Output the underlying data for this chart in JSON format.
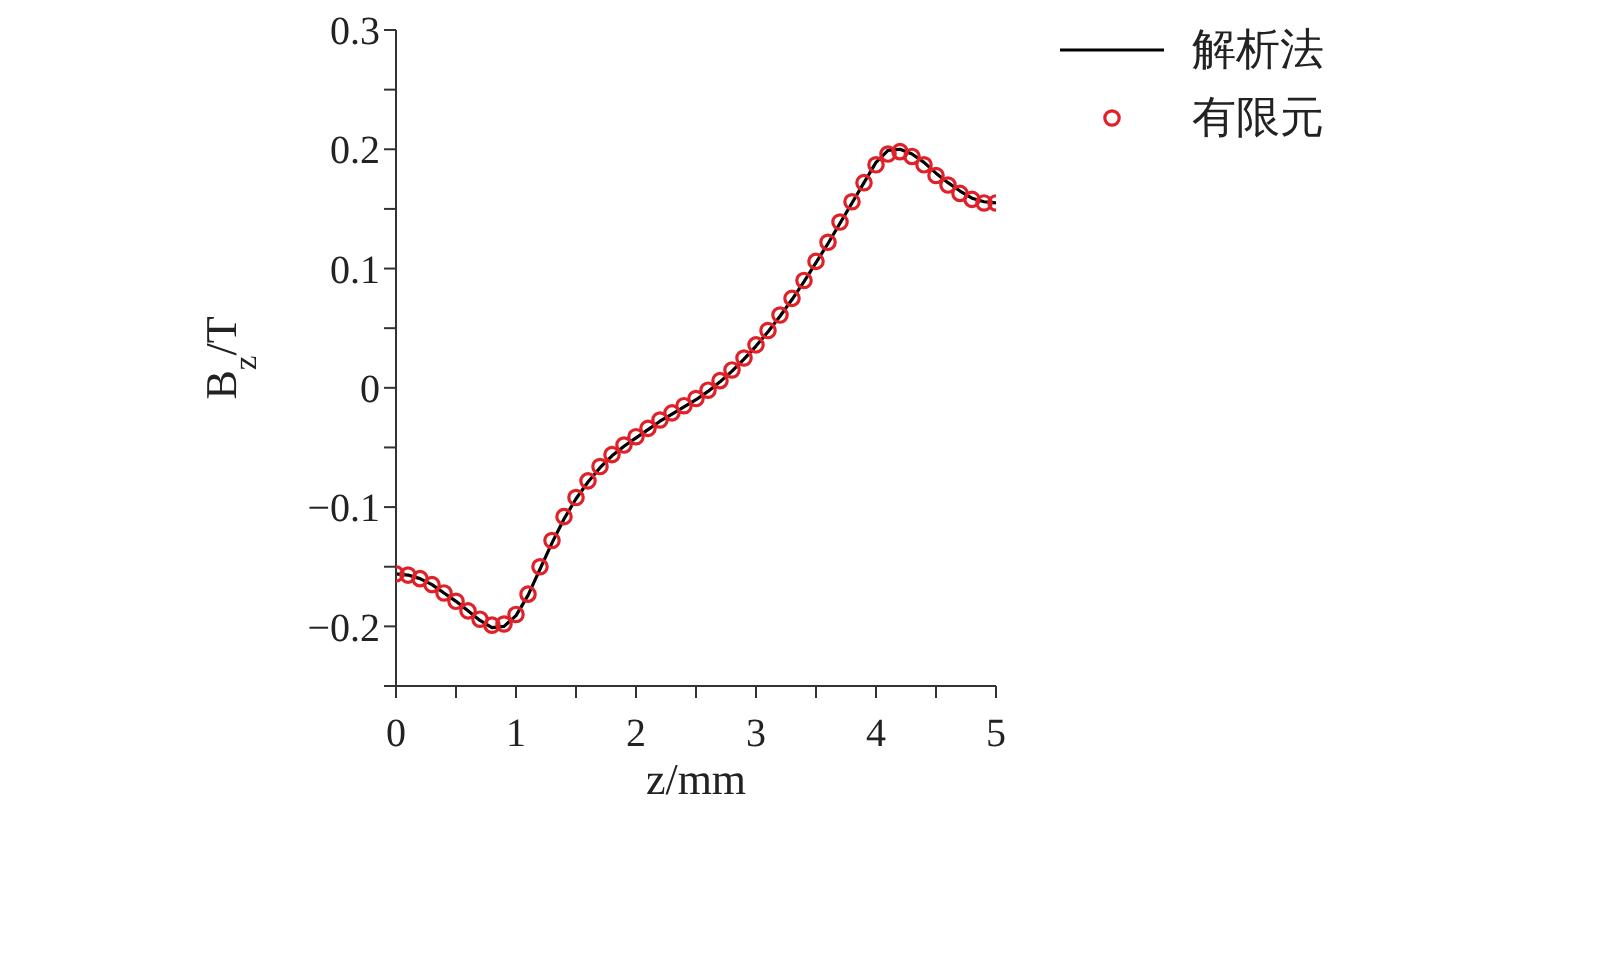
{
  "chart_data": {
    "type": "line",
    "xlabel": "z/mm",
    "ylabel": "B$_{z}$/T",
    "x": [
      0,
      0.1,
      0.2,
      0.3,
      0.4,
      0.5,
      0.6,
      0.7,
      0.8,
      0.9,
      1.0,
      1.1,
      1.2,
      1.3,
      1.4,
      1.5,
      1.6,
      1.7,
      1.8,
      1.9,
      2.0,
      2.1,
      2.2,
      2.3,
      2.4,
      2.5,
      2.6,
      2.7,
      2.8,
      2.9,
      3.0,
      3.1,
      3.2,
      3.3,
      3.4,
      3.5,
      3.6,
      3.7,
      3.8,
      3.9,
      4.0,
      4.1,
      4.2,
      4.3,
      4.4,
      4.5,
      4.6,
      4.7,
      4.8,
      4.9,
      5.0
    ],
    "series": [
      {
        "name": "解析法",
        "color": "#000000",
        "marker": "none",
        "values": [
          -0.156,
          -0.157,
          -0.16,
          -0.165,
          -0.172,
          -0.179,
          -0.187,
          -0.195,
          -0.201,
          -0.2,
          -0.191,
          -0.174,
          -0.152,
          -0.13,
          -0.11,
          -0.093,
          -0.079,
          -0.067,
          -0.057,
          -0.049,
          -0.042,
          -0.035,
          -0.028,
          -0.022,
          -0.016,
          -0.01,
          -0.003,
          0.005,
          0.014,
          0.024,
          0.035,
          0.047,
          0.06,
          0.074,
          0.089,
          0.105,
          0.121,
          0.138,
          0.155,
          0.172,
          0.189,
          0.199,
          0.2,
          0.196,
          0.189,
          0.18,
          0.172,
          0.165,
          0.159,
          0.156,
          0.155
        ]
      },
      {
        "name": "有限元",
        "type": "scatter",
        "color": "#e02128",
        "marker": "circle",
        "values": [
          -0.156,
          -0.157,
          -0.16,
          -0.165,
          -0.172,
          -0.179,
          -0.187,
          -0.194,
          -0.199,
          -0.198,
          -0.19,
          -0.173,
          -0.15,
          -0.128,
          -0.108,
          -0.092,
          -0.078,
          -0.066,
          -0.056,
          -0.048,
          -0.041,
          -0.034,
          -0.027,
          -0.021,
          -0.015,
          -0.009,
          -0.002,
          0.006,
          0.015,
          0.025,
          0.036,
          0.048,
          0.061,
          0.075,
          0.09,
          0.106,
          0.122,
          0.139,
          0.156,
          0.172,
          0.187,
          0.196,
          0.198,
          0.194,
          0.187,
          0.178,
          0.17,
          0.163,
          0.158,
          0.155,
          0.155
        ]
      }
    ],
    "xlim": [
      0,
      5
    ],
    "xticks": [
      0,
      {
        "value": 0.5,
        "label": null
      },
      1,
      {
        "value": 1.5,
        "label": null
      },
      2,
      {
        "value": 2.5,
        "label": null
      },
      3,
      {
        "value": 3.5,
        "label": null
      },
      4,
      {
        "value": 4.5,
        "label": null
      },
      5
    ],
    "ylim": [
      -0.25,
      0.3
    ],
    "yticks": [
      {
        "value": -0.25,
        "label": null
      },
      {
        "value": -0.2,
        "label": "−0.2"
      },
      {
        "value": -0.15,
        "label": null
      },
      {
        "value": -0.1,
        "label": "−0.1"
      },
      {
        "value": -0.05,
        "label": null
      },
      0,
      {
        "value": 0.05,
        "label": null
      },
      0.1,
      {
        "value": 0.15,
        "label": null
      },
      0.2,
      {
        "value": 0.25,
        "label": null
      },
      0.3
    ],
    "grid": false,
    "legend": "top right"
  }
}
